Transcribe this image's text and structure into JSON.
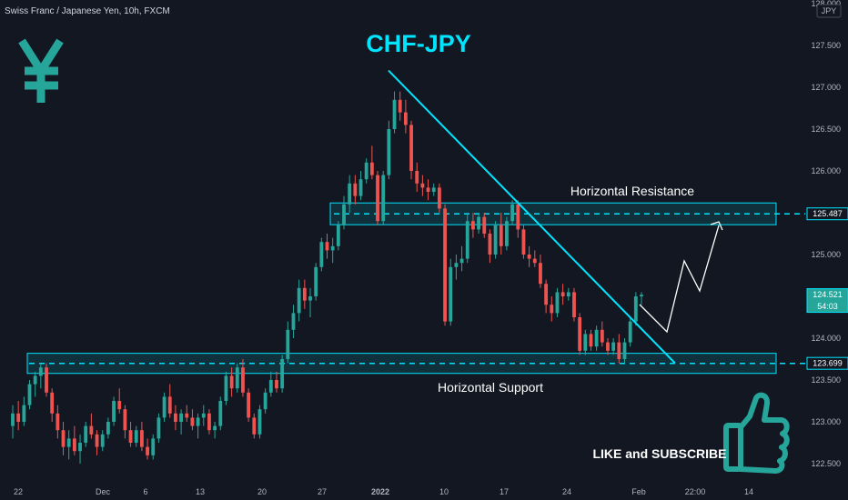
{
  "header": {
    "symbol_label": "Swiss Franc / Japanese Yen, 10h, FXCM"
  },
  "currency_badge": "JPY",
  "colors": {
    "background": "#131722",
    "bull": "#26a69a",
    "bear": "#ef5350",
    "accent": "#00e5ff",
    "grid_text": "#b2b5be"
  },
  "icons": [
    "yen-icon",
    "thumbs-up-icon",
    "projection-arrow-icon"
  ],
  "chart_data": {
    "type": "candlestick",
    "title": "CHF-JPY",
    "y_axis": {
      "min": 122.4,
      "max": 128.0,
      "ticks": [
        "128.000",
        "127.500",
        "127.000",
        "126.500",
        "126.000",
        "125.500",
        "125.000",
        "124.500",
        "124.000",
        "123.500",
        "123.000",
        "122.500"
      ]
    },
    "x_axis": {
      "ticks": [
        "22",
        "Dec",
        "6",
        "13",
        "20",
        "27",
        "2022",
        "10",
        "17",
        "24",
        "Feb",
        "22:00",
        "14"
      ]
    },
    "series": [
      {
        "ohlc": [
          [
            122.95,
            123.2,
            122.8,
            123.1
          ],
          [
            123.1,
            123.25,
            122.9,
            123.0
          ],
          [
            123.0,
            123.3,
            122.95,
            123.2
          ],
          [
            123.2,
            123.5,
            123.15,
            123.45
          ],
          [
            123.45,
            123.6,
            123.3,
            123.55
          ],
          [
            123.55,
            123.7,
            123.4,
            123.65
          ],
          [
            123.65,
            123.7,
            123.3,
            123.35
          ],
          [
            123.35,
            123.4,
            123.0,
            123.1
          ],
          [
            123.1,
            123.2,
            122.8,
            122.9
          ],
          [
            122.9,
            123.0,
            122.6,
            122.7
          ],
          [
            122.7,
            122.9,
            122.55,
            122.8
          ],
          [
            122.8,
            122.95,
            122.6,
            122.65
          ],
          [
            122.65,
            122.85,
            122.5,
            122.75
          ],
          [
            122.75,
            123.0,
            122.7,
            122.95
          ],
          [
            122.95,
            123.1,
            122.8,
            122.85
          ],
          [
            122.85,
            122.9,
            122.6,
            122.7
          ],
          [
            122.7,
            122.9,
            122.65,
            122.85
          ],
          [
            122.85,
            123.05,
            122.8,
            123.0
          ],
          [
            123.0,
            123.3,
            122.95,
            123.25
          ],
          [
            123.25,
            123.4,
            123.1,
            123.15
          ],
          [
            123.15,
            123.2,
            122.8,
            122.9
          ],
          [
            122.9,
            123.0,
            122.7,
            122.75
          ],
          [
            122.75,
            122.95,
            122.7,
            122.9
          ],
          [
            122.9,
            123.0,
            122.65,
            122.7
          ],
          [
            122.7,
            122.8,
            122.55,
            122.6
          ],
          [
            122.6,
            122.85,
            122.55,
            122.8
          ],
          [
            122.8,
            123.1,
            122.75,
            123.05
          ],
          [
            123.05,
            123.35,
            123.0,
            123.3
          ],
          [
            123.3,
            123.45,
            123.05,
            123.1
          ],
          [
            123.1,
            123.2,
            122.9,
            123.0
          ],
          [
            123.0,
            123.15,
            122.85,
            123.1
          ],
          [
            123.1,
            123.2,
            123.0,
            123.05
          ],
          [
            123.05,
            123.15,
            122.9,
            122.95
          ],
          [
            122.95,
            123.1,
            122.8,
            123.05
          ],
          [
            123.05,
            123.2,
            122.95,
            123.1
          ],
          [
            123.1,
            123.15,
            122.85,
            122.9
          ],
          [
            122.9,
            123.0,
            122.8,
            122.95
          ],
          [
            122.95,
            123.3,
            122.9,
            123.25
          ],
          [
            123.25,
            123.6,
            123.2,
            123.55
          ],
          [
            123.55,
            123.65,
            123.3,
            123.4
          ],
          [
            123.4,
            123.7,
            123.35,
            123.65
          ],
          [
            123.65,
            123.75,
            123.3,
            123.35
          ],
          [
            123.35,
            123.4,
            123.0,
            123.05
          ],
          [
            123.05,
            123.1,
            122.8,
            122.85
          ],
          [
            122.85,
            123.2,
            122.8,
            123.15
          ],
          [
            123.15,
            123.4,
            123.1,
            123.35
          ],
          [
            123.35,
            123.6,
            123.3,
            123.5
          ],
          [
            123.5,
            123.6,
            123.35,
            123.4
          ],
          [
            123.4,
            123.8,
            123.35,
            123.75
          ],
          [
            123.75,
            124.2,
            123.7,
            124.1
          ],
          [
            124.1,
            124.4,
            124.0,
            124.3
          ],
          [
            124.3,
            124.7,
            124.2,
            124.6
          ],
          [
            124.6,
            124.7,
            124.35,
            124.45
          ],
          [
            124.45,
            124.6,
            124.25,
            124.5
          ],
          [
            124.5,
            124.9,
            124.45,
            124.85
          ],
          [
            124.85,
            125.2,
            124.8,
            125.15
          ],
          [
            125.15,
            125.25,
            124.95,
            125.05
          ],
          [
            125.05,
            125.2,
            124.9,
            125.1
          ],
          [
            125.1,
            125.4,
            125.05,
            125.35
          ],
          [
            125.35,
            125.7,
            125.3,
            125.6
          ],
          [
            125.6,
            125.95,
            125.5,
            125.85
          ],
          [
            125.85,
            125.95,
            125.6,
            125.7
          ],
          [
            125.7,
            126.0,
            125.65,
            125.9
          ],
          [
            125.9,
            126.15,
            125.85,
            126.1
          ],
          [
            126.1,
            126.3,
            125.9,
            125.95
          ],
          [
            125.95,
            126.0,
            125.35,
            125.4
          ],
          [
            125.4,
            126.0,
            125.35,
            125.95
          ],
          [
            125.95,
            126.6,
            125.9,
            126.5
          ],
          [
            126.5,
            126.95,
            126.45,
            126.85
          ],
          [
            126.85,
            126.95,
            126.6,
            126.7
          ],
          [
            126.7,
            126.85,
            126.45,
            126.55
          ],
          [
            126.55,
            126.6,
            125.9,
            126.0
          ],
          [
            126.0,
            126.1,
            125.75,
            125.85
          ],
          [
            125.85,
            125.95,
            125.7,
            125.8
          ],
          [
            125.8,
            125.9,
            125.65,
            125.75
          ],
          [
            125.75,
            125.85,
            125.7,
            125.8
          ],
          [
            125.8,
            125.85,
            125.5,
            125.55
          ],
          [
            125.55,
            125.6,
            124.15,
            124.2
          ],
          [
            124.2,
            124.95,
            124.15,
            124.85
          ],
          [
            124.85,
            125.0,
            124.7,
            124.9
          ],
          [
            124.9,
            125.1,
            124.8,
            124.95
          ],
          [
            124.95,
            125.5,
            124.9,
            125.4
          ],
          [
            125.4,
            125.5,
            125.2,
            125.3
          ],
          [
            125.3,
            125.5,
            125.25,
            125.45
          ],
          [
            125.45,
            125.5,
            125.2,
            125.25
          ],
          [
            125.25,
            125.3,
            124.9,
            125.0
          ],
          [
            125.0,
            125.4,
            124.95,
            125.35
          ],
          [
            125.35,
            125.5,
            125.0,
            125.1
          ],
          [
            125.1,
            125.45,
            125.05,
            125.4
          ],
          [
            125.4,
            125.65,
            125.35,
            125.6
          ],
          [
            125.6,
            125.65,
            125.2,
            125.3
          ],
          [
            125.3,
            125.35,
            124.95,
            125.0
          ],
          [
            125.0,
            125.1,
            124.85,
            124.95
          ],
          [
            124.95,
            125.05,
            124.85,
            124.9
          ],
          [
            124.9,
            125.0,
            124.6,
            124.65
          ],
          [
            124.65,
            124.7,
            124.3,
            124.4
          ],
          [
            124.4,
            124.5,
            124.2,
            124.3
          ],
          [
            124.3,
            124.6,
            124.25,
            124.55
          ],
          [
            124.55,
            124.65,
            124.4,
            124.5
          ],
          [
            124.5,
            124.6,
            124.45,
            124.55
          ],
          [
            124.55,
            124.6,
            124.2,
            124.25
          ],
          [
            124.25,
            124.3,
            123.8,
            123.85
          ],
          [
            123.85,
            124.1,
            123.8,
            124.05
          ],
          [
            124.05,
            124.1,
            123.85,
            123.9
          ],
          [
            123.9,
            124.15,
            123.85,
            124.1
          ],
          [
            124.1,
            124.2,
            123.9,
            123.95
          ],
          [
            123.95,
            124.0,
            123.8,
            123.85
          ],
          [
            123.85,
            124.0,
            123.8,
            123.95
          ],
          [
            123.95,
            124.05,
            123.7,
            123.75
          ],
          [
            123.75,
            124.0,
            123.7,
            123.95
          ],
          [
            123.95,
            124.25,
            123.9,
            124.2
          ],
          [
            124.2,
            124.55,
            124.15,
            124.5
          ],
          [
            124.5,
            124.55,
            124.4,
            124.52
          ]
        ]
      }
    ],
    "annotations": {
      "resistance_label": "Horizontal Resistance",
      "support_label": "Horizontal Support",
      "resistance_level": 125.487,
      "support_level": 123.699,
      "resistance_price_tag": "125.487",
      "support_price_tag": "123.699",
      "last_price_tag": "124.521",
      "countdown": "54:03",
      "trendline_start_price": 127.2,
      "trendline_end_price": 123.7
    },
    "grid": false
  },
  "promo": {
    "cta_text": "LIKE and SUBSCRIBE"
  }
}
